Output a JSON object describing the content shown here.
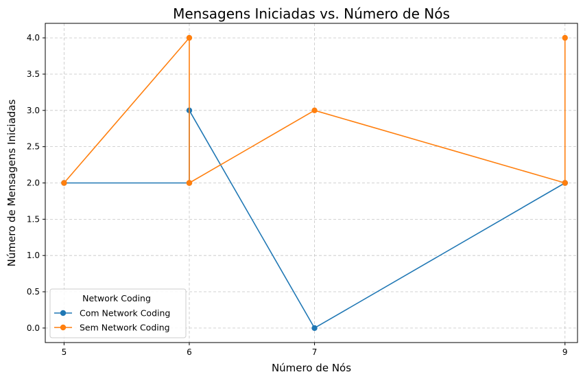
{
  "chart_data": {
    "type": "line",
    "title": "Mensagens Iniciadas vs. Número de Nós",
    "xlabel": "Número de Nós",
    "ylabel": "Número de Mensagens Iniciadas",
    "xlim": [
      4.85,
      9.1
    ],
    "ylim": [
      -0.2,
      4.2
    ],
    "xticks": [
      5,
      6,
      7,
      9
    ],
    "xtick_labels": [
      "5",
      "6",
      "7",
      "9"
    ],
    "yticks": [
      0.0,
      0.5,
      1.0,
      1.5,
      2.0,
      2.5,
      3.0,
      3.5,
      4.0
    ],
    "ytick_labels": [
      "0.0",
      "0.5",
      "1.0",
      "1.5",
      "2.0",
      "2.5",
      "3.0",
      "3.5",
      "4.0"
    ],
    "grid": true,
    "legend": {
      "title": "Network Coding",
      "position": "lower-left"
    },
    "series": [
      {
        "name": "Com Network Coding",
        "color": "#1f77b4",
        "marker": "circle",
        "x": [
          5,
          6,
          6,
          7,
          9,
          9
        ],
        "y": [
          2,
          2,
          3,
          0,
          2,
          2
        ]
      },
      {
        "name": "Sem Network Coding",
        "color": "#ff7f0e",
        "marker": "circle",
        "x": [
          5,
          6,
          6,
          6,
          7,
          9,
          9
        ],
        "y": [
          2,
          4,
          2,
          2,
          3,
          2,
          4
        ]
      }
    ]
  }
}
